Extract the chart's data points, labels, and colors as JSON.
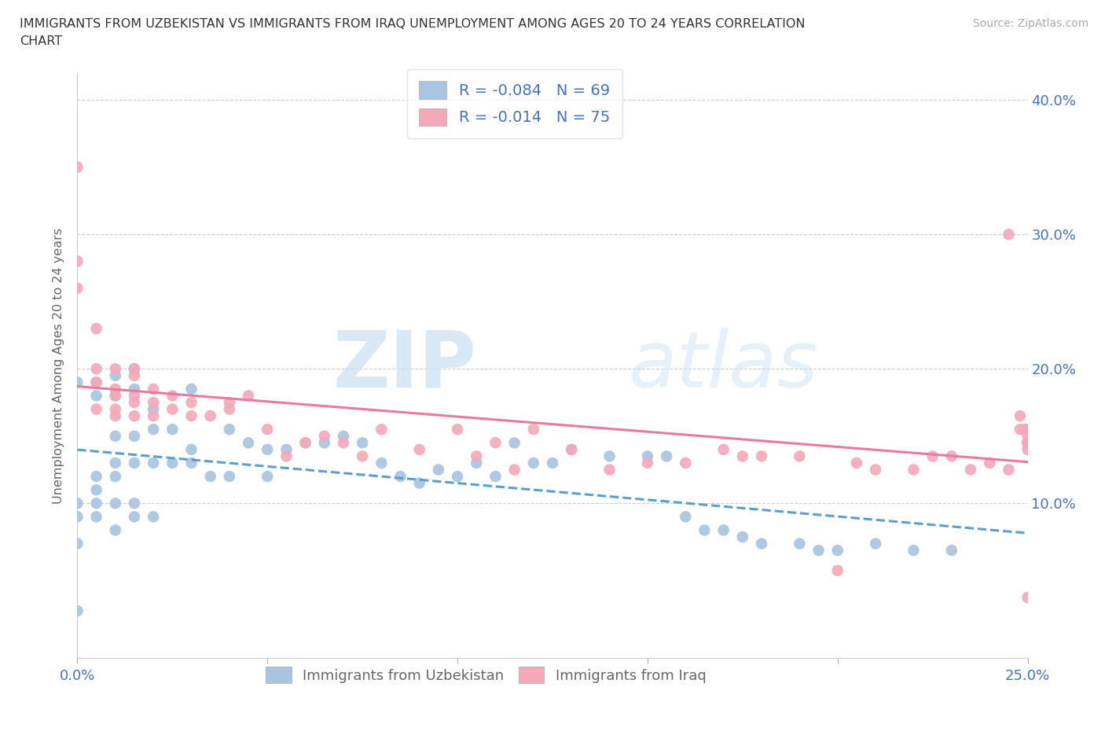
{
  "title_line1": "IMMIGRANTS FROM UZBEKISTAN VS IMMIGRANTS FROM IRAQ UNEMPLOYMENT AMONG AGES 20 TO 24 YEARS CORRELATION",
  "title_line2": "CHART",
  "source": "Source: ZipAtlas.com",
  "ylabel": "Unemployment Among Ages 20 to 24 years",
  "xlim": [
    0.0,
    0.25
  ],
  "ylim": [
    -0.015,
    0.42
  ],
  "right_ytick_labels": [
    "10.0%",
    "20.0%",
    "30.0%",
    "40.0%"
  ],
  "right_ytick_positions": [
    0.1,
    0.2,
    0.3,
    0.4
  ],
  "color_uzbekistan": "#a8c4e0",
  "color_iraq": "#f4a8b8",
  "trendline_uzbekistan_color": "#5a9fd4",
  "trendline_iraq_color": "#e87a9f",
  "watermark_zip": "ZIP",
  "watermark_atlas": "atlas",
  "watermark_color": "#d0e4f5",
  "uzbekistan_x": [
    0.0,
    0.0,
    0.0,
    0.0,
    0.0,
    0.005,
    0.005,
    0.005,
    0.005,
    0.005,
    0.005,
    0.01,
    0.01,
    0.01,
    0.01,
    0.01,
    0.01,
    0.01,
    0.015,
    0.015,
    0.015,
    0.015,
    0.015,
    0.015,
    0.02,
    0.02,
    0.02,
    0.02,
    0.025,
    0.025,
    0.03,
    0.03,
    0.03,
    0.035,
    0.04,
    0.04,
    0.045,
    0.05,
    0.05,
    0.055,
    0.06,
    0.065,
    0.07,
    0.075,
    0.08,
    0.085,
    0.09,
    0.095,
    0.1,
    0.105,
    0.11,
    0.115,
    0.12,
    0.125,
    0.13,
    0.14,
    0.15,
    0.155,
    0.16,
    0.165,
    0.17,
    0.175,
    0.18,
    0.19,
    0.195,
    0.2,
    0.21,
    0.22,
    0.23
  ],
  "uzbekistan_y": [
    0.19,
    0.1,
    0.09,
    0.07,
    0.02,
    0.19,
    0.18,
    0.12,
    0.11,
    0.1,
    0.09,
    0.195,
    0.18,
    0.15,
    0.13,
    0.12,
    0.1,
    0.08,
    0.2,
    0.185,
    0.15,
    0.13,
    0.1,
    0.09,
    0.17,
    0.155,
    0.13,
    0.09,
    0.155,
    0.13,
    0.185,
    0.14,
    0.13,
    0.12,
    0.155,
    0.12,
    0.145,
    0.14,
    0.12,
    0.14,
    0.145,
    0.145,
    0.15,
    0.145,
    0.13,
    0.12,
    0.115,
    0.125,
    0.12,
    0.13,
    0.12,
    0.145,
    0.13,
    0.13,
    0.14,
    0.135,
    0.135,
    0.135,
    0.09,
    0.08,
    0.08,
    0.075,
    0.07,
    0.07,
    0.065,
    0.065,
    0.07,
    0.065,
    0.065
  ],
  "iraq_x": [
    0.0,
    0.0,
    0.0,
    0.005,
    0.005,
    0.005,
    0.005,
    0.01,
    0.01,
    0.01,
    0.01,
    0.01,
    0.015,
    0.015,
    0.015,
    0.015,
    0.015,
    0.02,
    0.02,
    0.02,
    0.025,
    0.025,
    0.03,
    0.03,
    0.035,
    0.04,
    0.04,
    0.045,
    0.05,
    0.055,
    0.06,
    0.065,
    0.07,
    0.075,
    0.08,
    0.09,
    0.1,
    0.105,
    0.11,
    0.115,
    0.12,
    0.13,
    0.14,
    0.15,
    0.16,
    0.17,
    0.175,
    0.18,
    0.19,
    0.2,
    0.205,
    0.21,
    0.22,
    0.225,
    0.23,
    0.235,
    0.24,
    0.245,
    0.245,
    0.248,
    0.248,
    0.249,
    0.25,
    0.25,
    0.25,
    0.25,
    0.25,
    0.25,
    0.25,
    0.25,
    0.25,
    0.25,
    0.25
  ],
  "iraq_y": [
    0.35,
    0.26,
    0.28,
    0.23,
    0.2,
    0.19,
    0.17,
    0.2,
    0.185,
    0.18,
    0.17,
    0.165,
    0.2,
    0.195,
    0.18,
    0.175,
    0.165,
    0.185,
    0.175,
    0.165,
    0.18,
    0.17,
    0.175,
    0.165,
    0.165,
    0.175,
    0.17,
    0.18,
    0.155,
    0.135,
    0.145,
    0.15,
    0.145,
    0.135,
    0.155,
    0.14,
    0.155,
    0.135,
    0.145,
    0.125,
    0.155,
    0.14,
    0.125,
    0.13,
    0.13,
    0.14,
    0.135,
    0.135,
    0.135,
    0.05,
    0.13,
    0.125,
    0.125,
    0.135,
    0.135,
    0.125,
    0.13,
    0.125,
    0.3,
    0.155,
    0.165,
    0.155,
    0.155,
    0.145,
    0.145,
    0.155,
    0.155,
    0.145,
    0.15,
    0.145,
    0.145,
    0.03,
    0.14
  ]
}
